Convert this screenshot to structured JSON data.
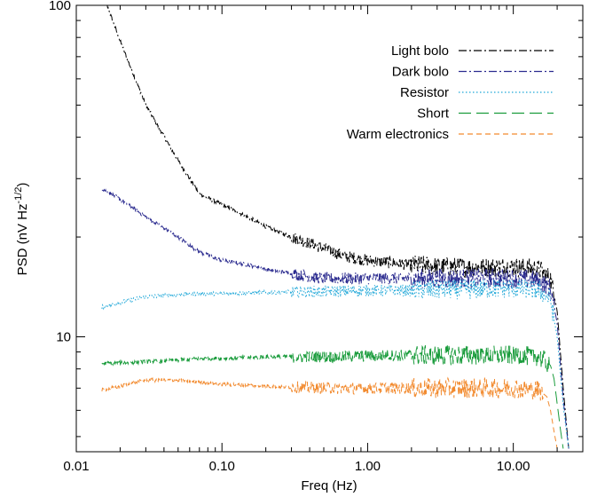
{
  "chart_data": {
    "type": "line",
    "title": "",
    "xlabel": "Freq (Hz)",
    "ylabel_main": "PSD (nV Hz",
    "ylabel_sup": "-1/2",
    "ylabel_end": ")",
    "xscale": "log",
    "yscale": "log",
    "xlim": [
      0.01,
      30
    ],
    "ylim": [
      4.5,
      100
    ],
    "grid": false,
    "legend_position": "top-right",
    "x_ticks": [
      {
        "value": 0.01,
        "label": "0.01"
      },
      {
        "value": 0.1,
        "label": "0.10"
      },
      {
        "value": 1,
        "label": "1.00"
      },
      {
        "value": 10,
        "label": "10.00"
      }
    ],
    "y_ticks": [
      {
        "value": 10,
        "label": "10"
      },
      {
        "value": 100,
        "label": "100"
      }
    ],
    "series": [
      {
        "name": "Light bolo",
        "color": "#000000",
        "dash": "dash-dot",
        "x": [
          0.015,
          0.02,
          0.03,
          0.05,
          0.07,
          0.1,
          0.15,
          0.2,
          0.3,
          0.5,
          0.7,
          1,
          2,
          3,
          5,
          8,
          10,
          15,
          18,
          20,
          22,
          24
        ],
        "y": [
          110,
          78,
          50,
          34,
          27,
          25,
          23,
          21.5,
          20,
          18.5,
          17.5,
          17,
          16.5,
          16.3,
          16.2,
          16.2,
          16.3,
          16.0,
          15.0,
          12,
          7,
          4.6
        ]
      },
      {
        "name": "Dark bolo",
        "color": "#2b2b8f",
        "dash": "dash-dot",
        "x": [
          0.015,
          0.02,
          0.03,
          0.05,
          0.07,
          0.1,
          0.15,
          0.2,
          0.3,
          0.5,
          1,
          2,
          3,
          5,
          8,
          10,
          15,
          18,
          20,
          22,
          24
        ],
        "y": [
          28,
          26,
          23,
          20,
          18,
          17,
          16.5,
          16,
          15.5,
          15,
          15,
          15,
          15,
          15,
          15,
          15,
          14.8,
          14,
          11,
          6.5,
          4.6
        ]
      },
      {
        "name": "Resistor",
        "color": "#1fa7d8",
        "dash": "dotted",
        "x": [
          0.015,
          0.02,
          0.03,
          0.05,
          0.07,
          0.1,
          0.2,
          0.5,
          1,
          2,
          3,
          5,
          8,
          10,
          15,
          18,
          20,
          22,
          24
        ],
        "y": [
          12.3,
          12.7,
          13.2,
          13.4,
          13.5,
          13.5,
          13.6,
          13.7,
          13.8,
          13.8,
          13.9,
          13.9,
          14,
          14,
          13.8,
          13,
          10,
          6.2,
          4.6
        ]
      },
      {
        "name": "Short",
        "color": "#1a9c3c",
        "dash": "long-dash",
        "x": [
          0.015,
          0.02,
          0.03,
          0.05,
          0.07,
          0.1,
          0.2,
          0.5,
          1,
          2,
          3,
          5,
          8,
          10,
          15,
          18,
          19,
          20,
          21,
          22
        ],
        "y": [
          8.3,
          8.35,
          8.4,
          8.5,
          8.6,
          8.6,
          8.7,
          8.7,
          8.75,
          8.8,
          8.8,
          8.8,
          8.8,
          8.8,
          8.7,
          8.2,
          7.5,
          6.3,
          5.3,
          4.6
        ]
      },
      {
        "name": "Warm electronics",
        "color": "#f28a2e",
        "dash": "short-dash",
        "x": [
          0.015,
          0.02,
          0.03,
          0.05,
          0.07,
          0.1,
          0.2,
          0.5,
          1,
          2,
          3,
          5,
          8,
          10,
          15,
          17,
          18,
          19,
          20
        ],
        "y": [
          6.9,
          7.1,
          7.4,
          7.4,
          7.3,
          7.2,
          7.1,
          7.0,
          7.0,
          7.0,
          7.0,
          7.0,
          7.0,
          7.0,
          6.9,
          6.6,
          6.0,
          5.2,
          4.6
        ]
      }
    ]
  }
}
